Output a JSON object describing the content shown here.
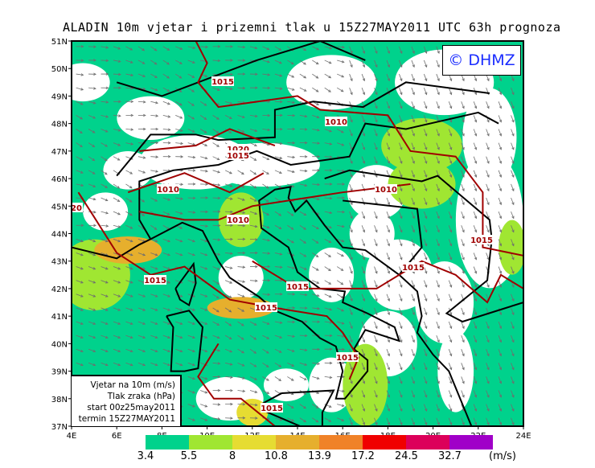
{
  "title": "ALADIN 10m vjetar i prizemni tlak u 15Z27MAY2011 UTC 63h prognoza",
  "logo": "© DHMZ",
  "info_box": {
    "line1": "Vjetar na 10m (m/s)",
    "line2": "Tlak zraka (hPa)",
    "line3": "start 00z25may2011",
    "line4": "termin 15Z27MAY2011"
  },
  "axes": {
    "lon_labels": [
      "4E",
      "6E",
      "8E",
      "10E",
      "12E",
      "14E",
      "16E",
      "18E",
      "20E",
      "22E",
      "24E"
    ],
    "lat_labels": [
      "51N",
      "50N",
      "49N",
      "48N",
      "47N",
      "46N",
      "45N",
      "44N",
      "43N",
      "42N",
      "41N",
      "40N",
      "39N",
      "38N",
      "37N"
    ]
  },
  "isobar_labels": [
    "1015",
    "1010",
    "1020",
    "1015",
    "1010",
    "1010",
    "1010",
    "1015",
    "1015",
    "1015",
    "1015",
    "1015",
    "1015",
    "1015",
    "20"
  ],
  "colorbar": {
    "unit": "(m/s)",
    "thresholds": [
      "3.4",
      "5.5",
      "8",
      "10.8",
      "13.9",
      "17.2",
      "24.5",
      "32.7"
    ],
    "colors": [
      "#00d28c",
      "#a0e632",
      "#e6dc32",
      "#e6af2d",
      "#f08228",
      "#f00000",
      "#dc005a",
      "#a000c8"
    ]
  },
  "colors": {
    "isobar": "#a00000",
    "arrow": "#6e6e6e",
    "border": "#000000"
  }
}
